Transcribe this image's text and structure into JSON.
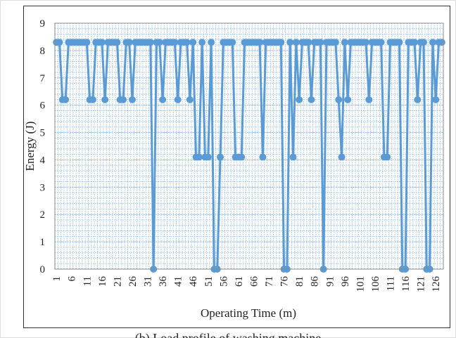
{
  "chart_data": {
    "type": "line",
    "x_label": "Operating Time (m)",
    "y_label": "Energy (J)",
    "caption": "(b) Load profile of washing machine",
    "color": "#5b9bd5",
    "categories": [
      1,
      null,
      null,
      null,
      null,
      6,
      null,
      null,
      null,
      null,
      11,
      null,
      null,
      null,
      null,
      16,
      null,
      null,
      null,
      null,
      21,
      null,
      null,
      null,
      null,
      26,
      null,
      null,
      null,
      null,
      31,
      null,
      null,
      null,
      null,
      36,
      null,
      null,
      null,
      null,
      41,
      null,
      null,
      null,
      null,
      46,
      null,
      null,
      null,
      null,
      51,
      null,
      null,
      null,
      null,
      56,
      null,
      null,
      null,
      null,
      61,
      null,
      null,
      null,
      null,
      66,
      null,
      null,
      null,
      null,
      71,
      null,
      null,
      null,
      null,
      76,
      null,
      null,
      null,
      null,
      81,
      null,
      null,
      null,
      null,
      86,
      null,
      null,
      null,
      null,
      91,
      null,
      null,
      null,
      null,
      96,
      null,
      null,
      null,
      null,
      101,
      null,
      null,
      null,
      null,
      106,
      null,
      null,
      null,
      null,
      111,
      null,
      null,
      null,
      null,
      116,
      null,
      null,
      null,
      null,
      121,
      null,
      null,
      null,
      null,
      126,
      null,
      null
    ],
    "values": [
      8.3,
      8.3,
      6.2,
      6.2,
      8.3,
      8.3,
      8.3,
      8.3,
      8.3,
      8.3,
      8.3,
      6.2,
      6.2,
      8.3,
      8.3,
      8.3,
      6.2,
      8.3,
      8.3,
      8.3,
      8.3,
      6.2,
      6.2,
      8.3,
      8.3,
      6.2,
      8.3,
      8.3,
      8.3,
      8.3,
      8.3,
      8.3,
      0,
      8.3,
      8.3,
      6.2,
      8.3,
      8.3,
      8.3,
      8.3,
      6.2,
      8.3,
      8.3,
      8.3,
      6.2,
      8.3,
      4.1,
      4.1,
      8.3,
      4.1,
      4.1,
      8.3,
      0,
      0,
      4.1,
      8.3,
      8.3,
      8.3,
      8.3,
      4.1,
      4.1,
      4.1,
      8.3,
      8.3,
      8.3,
      8.3,
      8.3,
      8.3,
      4.1,
      8.3,
      8.3,
      8.3,
      8.3,
      8.3,
      8.3,
      0,
      0,
      8.3,
      4.1,
      8.3,
      6.2,
      8.3,
      8.3,
      8.3,
      6.2,
      8.3,
      8.3,
      8.3,
      0,
      8.3,
      8.3,
      8.3,
      8.3,
      6.2,
      4.1,
      8.3,
      6.2,
      8.3,
      8.3,
      8.3,
      8.3,
      8.3,
      8.3,
      6.2,
      8.3,
      8.3,
      8.3,
      8.3,
      4.1,
      4.1,
      8.3,
      8.3,
      8.3,
      8.3,
      0,
      0,
      8.3,
      8.3,
      8.3,
      6.2,
      8.3,
      8.3,
      0,
      0,
      8.3,
      6.2,
      8.3,
      8.3
    ],
    "ylim": [
      0,
      9
    ],
    "yticks": [
      0,
      1,
      2,
      3,
      4,
      5,
      6,
      7,
      8,
      9
    ],
    "grid": true
  }
}
